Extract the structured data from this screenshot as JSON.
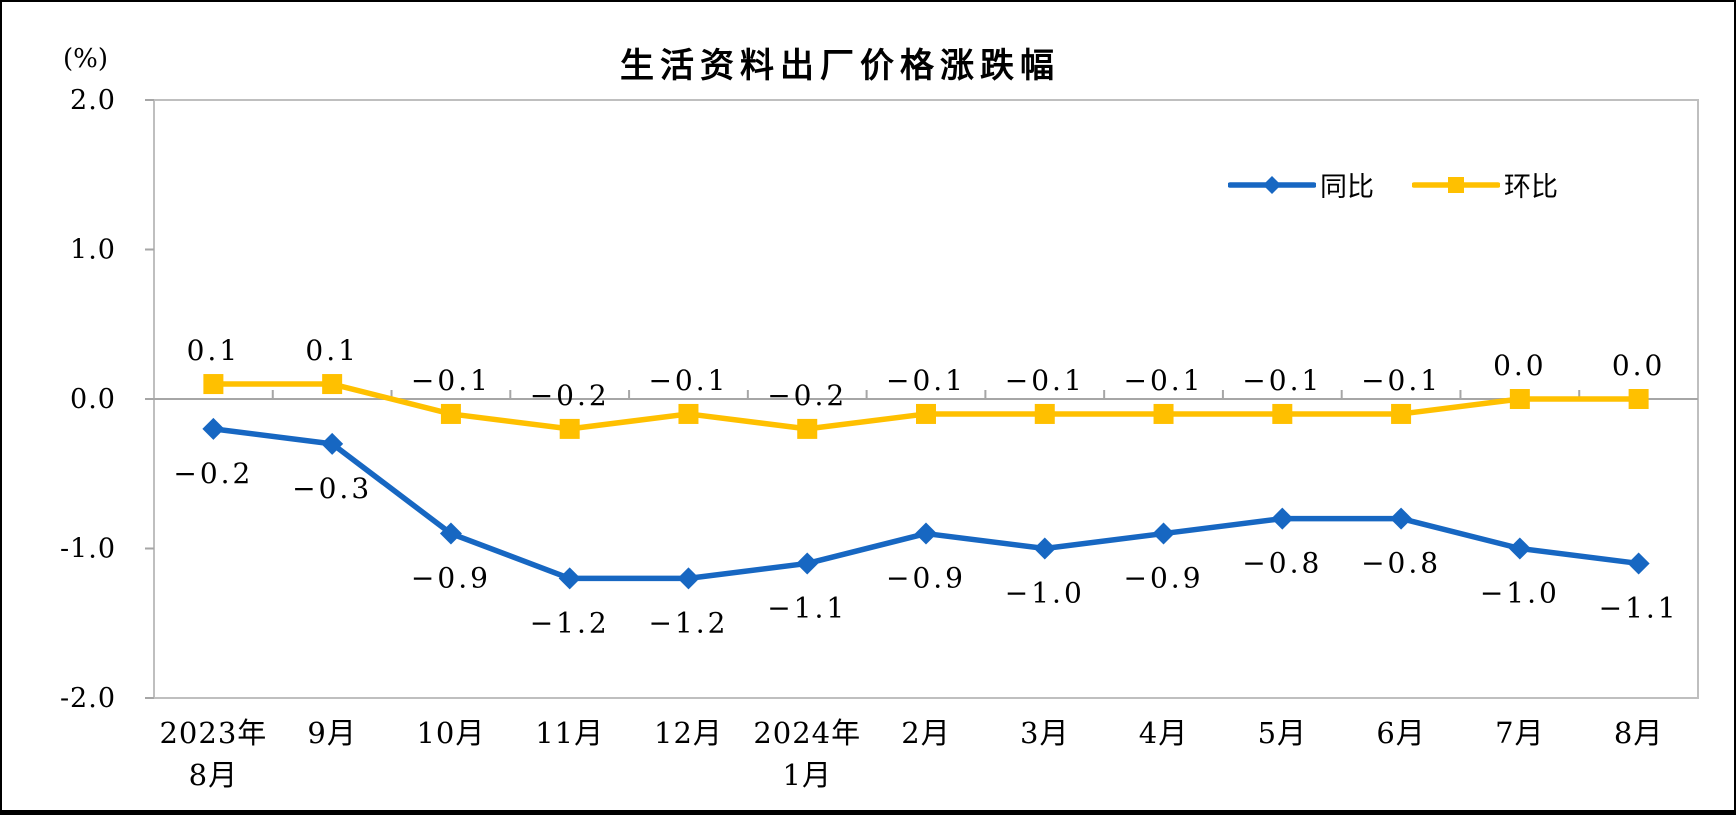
{
  "chart_data": {
    "type": "line",
    "title": "生活资料出厂价格涨跌幅",
    "unit_label": "(%)",
    "categories": [
      "2023年\n8月",
      "9月",
      "10月",
      "11月",
      "12月",
      "2024年\n1月",
      "2月",
      "3月",
      "4月",
      "5月",
      "6月",
      "7月",
      "8月"
    ],
    "series": [
      {
        "name": "同比",
        "color": "#1767C2",
        "marker": "diamond",
        "label_position": "below",
        "values": [
          -0.2,
          -0.3,
          -0.9,
          -1.2,
          -1.2,
          -1.1,
          -0.9,
          -1.0,
          -0.9,
          -0.8,
          -0.8,
          -1.0,
          -1.1
        ],
        "labels": [
          "−0.2",
          "−0.3",
          "−0.9",
          "−1.2",
          "−1.2",
          "−1.1",
          "−0.9",
          "−1.0",
          "−0.9",
          "−0.8",
          "−0.8",
          "−1.0",
          "−1.1"
        ]
      },
      {
        "name": "环比",
        "color": "#FFC000",
        "marker": "square",
        "label_position": "above",
        "values": [
          0.1,
          0.1,
          -0.1,
          -0.2,
          -0.1,
          -0.2,
          -0.1,
          -0.1,
          -0.1,
          -0.1,
          -0.1,
          0.0,
          0.0
        ],
        "labels": [
          "0.1",
          "0.1",
          "−0.1",
          "−0.2",
          "−0.1",
          "−0.2",
          "−0.1",
          "−0.1",
          "−0.1",
          "−0.1",
          "−0.1",
          "0.0",
          "0.0"
        ]
      }
    ],
    "ylim": [
      -2.0,
      2.0
    ],
    "yticks": [
      {
        "v": 2.0,
        "label": "2.0"
      },
      {
        "v": 1.0,
        "label": "1.0"
      },
      {
        "v": 0.0,
        "label": "0.0"
      },
      {
        "v": -1.0,
        "label": "-1.0"
      },
      {
        "v": -2.0,
        "label": "-2.0"
      }
    ],
    "grid": "zero-line-only",
    "legend_position": "top-right",
    "colors": {
      "axis_border": "#BFBFBF",
      "zero_line": "#A6A6A6",
      "tick": "#A6A6A6",
      "text": "#000000"
    }
  }
}
